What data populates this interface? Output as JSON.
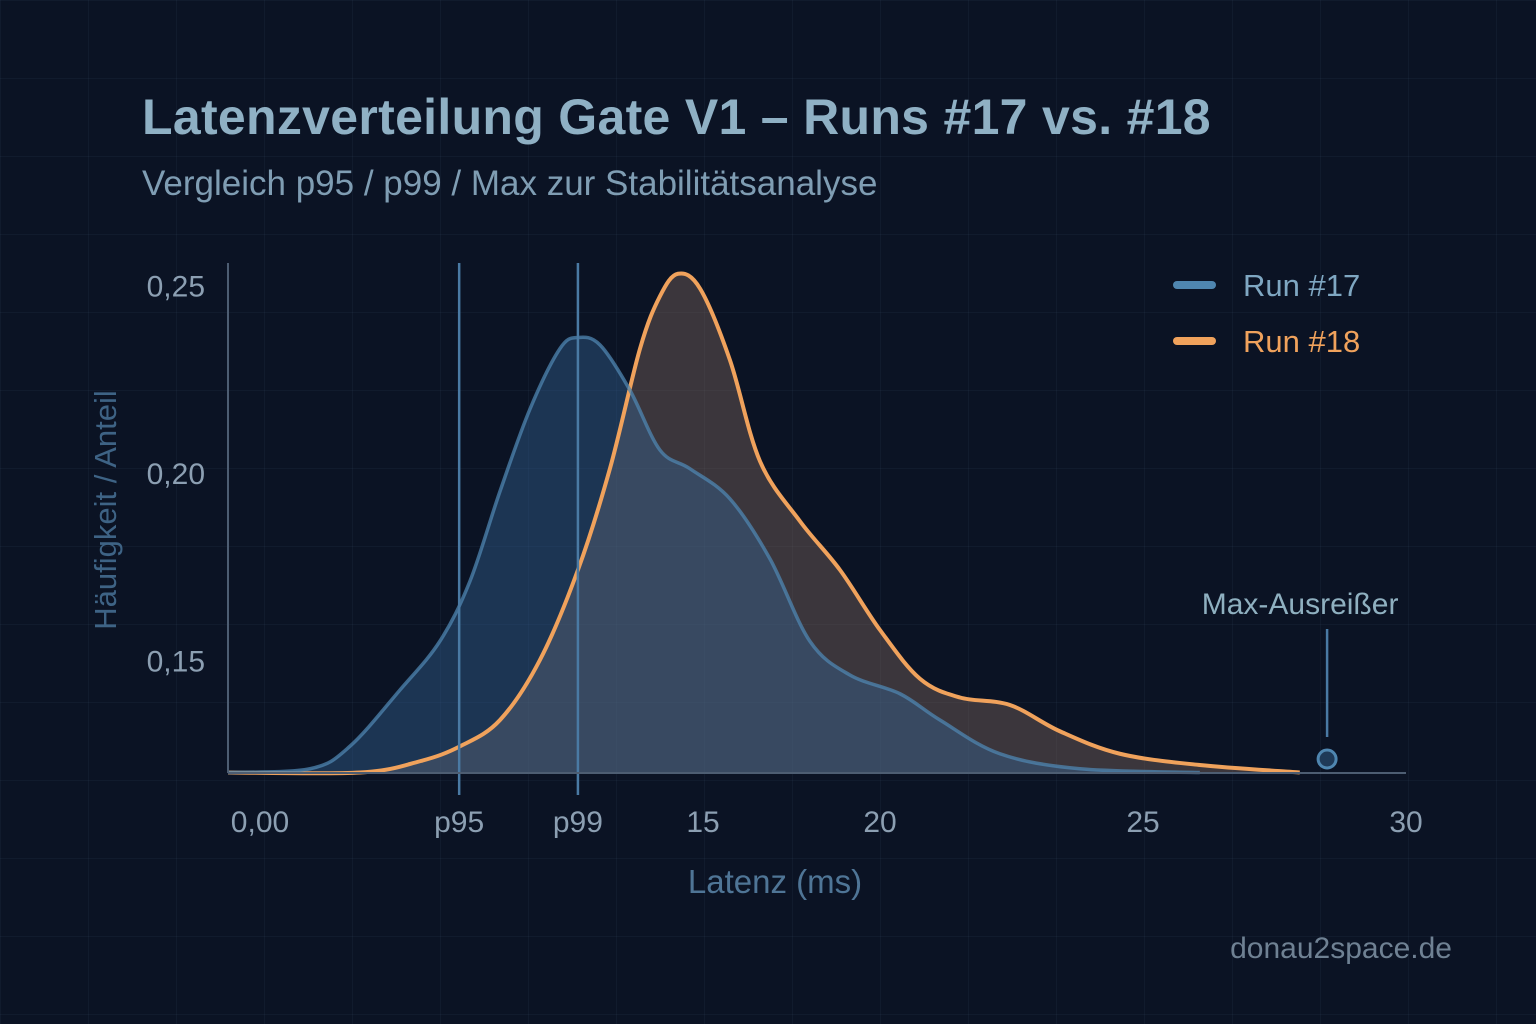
{
  "chart_data": {
    "type": "area",
    "title": "Latenzverteilung Gate V1 – Runs #17 vs. #18",
    "subtitle": "Vergleich p95 / p99 / Max zur Stabilitätsanalyse",
    "xlabel": "Latenz (ms)",
    "ylabel": "Häufigkeit / Anteil",
    "xlim": [
      0,
      30
    ],
    "ylim": [
      0.122,
      0.26
    ],
    "grid": true,
    "legend_position": "top-right",
    "x_ticks": [
      {
        "value": 0,
        "label": "0,00"
      },
      {
        "value": 7.3,
        "label": "p95"
      },
      {
        "value": 11.05,
        "label": "p99"
      },
      {
        "value": 15,
        "label": "15"
      },
      {
        "value": 20,
        "label": "20"
      },
      {
        "value": 25,
        "label": "25"
      },
      {
        "value": 30,
        "label": "30"
      }
    ],
    "y_ticks": [
      {
        "value": 0.25,
        "label": "0,25"
      },
      {
        "value": 0.2,
        "label": "0,20"
      },
      {
        "value": 0.15,
        "label": "0,15"
      }
    ],
    "reference_lines": [
      {
        "name": "p95",
        "value": 7.3
      },
      {
        "name": "p99",
        "value": 11.05
      }
    ],
    "series": [
      {
        "name": "Run #17",
        "color": "#4f86b0",
        "x": [
          0,
          2.59,
          3.85,
          5.43,
          6.69,
          7.64,
          8.59,
          9.54,
          10.48,
          11.05,
          11.75,
          12.69,
          13.64,
          14.59,
          15.76,
          16.89,
          18.02,
          19.15,
          20.38,
          21.14,
          22.28,
          23.8,
          26.08
        ],
        "y": [
          0.122,
          0.123,
          0.129,
          0.144,
          0.157,
          0.173,
          0.197,
          0.219,
          0.235,
          0.238,
          0.236,
          0.224,
          0.208,
          0.203,
          0.195,
          0.179,
          0.157,
          0.148,
          0.143,
          0.136,
          0.127,
          0.123,
          0.122
        ]
      },
      {
        "name": "Run #18",
        "color": "#f0a25c",
        "x": [
          0,
          4.17,
          6.06,
          7.33,
          8.59,
          9.85,
          11.05,
          12.06,
          13.01,
          13.64,
          14.21,
          14.91,
          15.76,
          16.61,
          17.74,
          18.87,
          20,
          20.76,
          21.52,
          22.47,
          23.42,
          24.56,
          26.08,
          27.98
        ],
        "y": [
          0.122,
          0.122,
          0.125,
          0.129,
          0.136,
          0.152,
          0.176,
          0.203,
          0.235,
          0.249,
          0.255,
          0.251,
          0.232,
          0.205,
          0.189,
          0.176,
          0.16,
          0.147,
          0.142,
          0.14,
          0.133,
          0.127,
          0.124,
          0.122
        ]
      }
    ],
    "annotations": [
      {
        "label": "Max-Ausreißer",
        "x": 28.5,
        "y": 0.126
      }
    ]
  },
  "watermark": "donau2space.de"
}
